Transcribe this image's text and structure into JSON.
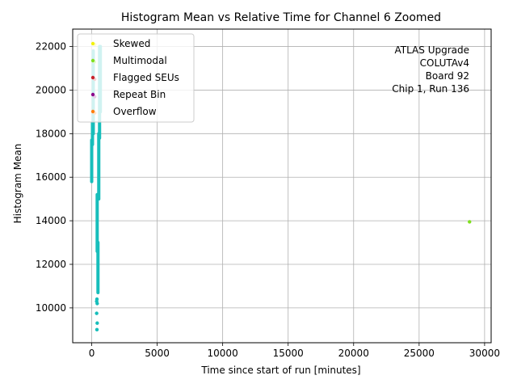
{
  "chart_data": {
    "type": "scatter",
    "title": "Histogram Mean vs Relative Time for Channel 6 Zoomed",
    "xlabel": "Time since start of run [minutes]",
    "ylabel": "Histogram Mean",
    "xlim": [
      -1450,
      30500
    ],
    "ylim": [
      8400,
      22800
    ],
    "xticks": [
      0,
      5000,
      10000,
      15000,
      20000,
      25000,
      30000
    ],
    "yticks": [
      10000,
      12000,
      14000,
      16000,
      18000,
      20000,
      22000
    ],
    "grid": true,
    "legend_position": "top-left",
    "annotation": [
      "ATLAS Upgrade",
      "COLUTAv4",
      "Board 92",
      "Chip 1, Run 136"
    ],
    "series": [
      {
        "name": "Skewed",
        "color": "#f2f20d",
        "points": [
          [
            230,
            22100
          ]
        ]
      },
      {
        "name": "Multimodal",
        "color": "#7fe01f",
        "points": [
          [
            210,
            21300
          ],
          [
            28850,
            13950
          ]
        ]
      },
      {
        "name": "Flagged SEUs",
        "color": "#c8202a",
        "points": [
          [
            230,
            20500
          ]
        ]
      },
      {
        "name": "Repeat Bin",
        "color": "#8b008b",
        "points": [
          [
            230,
            19700
          ]
        ]
      },
      {
        "name": "Overflow",
        "color": "#ff7f0e",
        "points": [
          [
            230,
            18950
          ]
        ]
      },
      {
        "name": "",
        "color": "#17bebb",
        "segments": [
          [
            0,
            15800,
            17700
          ],
          [
            60,
            17500,
            18500
          ],
          [
            120,
            18000,
            21800
          ],
          [
            420,
            12600,
            15200
          ],
          [
            480,
            10700,
            13000
          ],
          [
            540,
            15000,
            18000
          ],
          [
            600,
            17800,
            22000
          ],
          [
            660,
            19000,
            22000
          ]
        ],
        "points": [
          [
            380,
            10300
          ],
          [
            400,
            10400
          ],
          [
            420,
            10200
          ],
          [
            380,
            9750
          ],
          [
            420,
            9300
          ],
          [
            400,
            9000
          ]
        ]
      }
    ]
  }
}
